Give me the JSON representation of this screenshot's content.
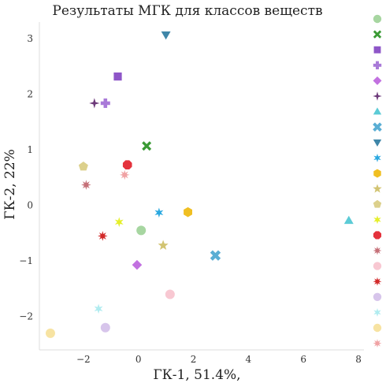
{
  "chart_data": {
    "type": "scatter",
    "title": "Результаты МГК для классов веществ",
    "xlabel": "ГК-1, 51.4%,",
    "ylabel": "ГК-2, 22%",
    "xlim": [
      -3.6,
      8.2
    ],
    "ylim": [
      -2.6,
      3.3
    ],
    "x_ticks": [
      -2,
      0,
      2,
      4,
      6,
      8
    ],
    "y_ticks": [
      -2,
      -1,
      0,
      1,
      2,
      3
    ],
    "grid": false,
    "legend_position": "right",
    "series": [
      {
        "marker": "circle",
        "color": "#a7d6a1",
        "x": 0.1,
        "y": -0.45
      },
      {
        "marker": "x",
        "color": "#3a9a34",
        "x": 0.3,
        "y": 1.07
      },
      {
        "marker": "square",
        "color": "#8e56c8",
        "x": -0.75,
        "y": 2.32
      },
      {
        "marker": "plus",
        "color": "#a97ad8",
        "x": -1.2,
        "y": 1.84
      },
      {
        "marker": "diamond",
        "color": "#c271e0",
        "x": -0.05,
        "y": -1.07
      },
      {
        "marker": "star4",
        "color": "#6d3a7a",
        "x": -1.6,
        "y": 1.84
      },
      {
        "marker": "triangle-up",
        "color": "#5ccbd6",
        "x": 7.65,
        "y": -0.27
      },
      {
        "marker": "x-filled",
        "color": "#5aaed4",
        "x": 2.8,
        "y": -0.9
      },
      {
        "marker": "triangle-down",
        "color": "#3f86a8",
        "x": 1.0,
        "y": 3.07
      },
      {
        "marker": "star6",
        "color": "#2aa8e0",
        "x": 0.75,
        "y": -0.13
      },
      {
        "marker": "hexagon",
        "color": "#f0bf22",
        "x": 1.8,
        "y": -0.12
      },
      {
        "marker": "star",
        "color": "#d2c472",
        "x": 0.9,
        "y": -0.72
      },
      {
        "marker": "pentagon",
        "color": "#dcd08c",
        "x": -2.0,
        "y": 0.7
      },
      {
        "marker": "star6",
        "color": "#e5ef2a",
        "x": -0.7,
        "y": -0.3
      },
      {
        "marker": "octagon",
        "color": "#e4323c",
        "x": -0.4,
        "y": 0.73
      },
      {
        "marker": "star8",
        "color": "#c57078",
        "x": -1.9,
        "y": 0.37
      },
      {
        "marker": "circle",
        "color": "#f8c8d2",
        "x": 1.15,
        "y": -1.6
      },
      {
        "marker": "star8",
        "color": "#d22a2a",
        "x": -1.3,
        "y": -0.55
      },
      {
        "marker": "circle",
        "color": "#d7c5eb",
        "x": -1.2,
        "y": -2.2
      },
      {
        "marker": "star6",
        "color": "#b0ecf0",
        "x": -1.45,
        "y": -1.86
      },
      {
        "marker": "circle",
        "color": "#f7e3a2",
        "x": -3.2,
        "y": -2.3
      },
      {
        "marker": "star8",
        "color": "#f0a2a4",
        "x": -0.5,
        "y": 0.55
      }
    ]
  }
}
